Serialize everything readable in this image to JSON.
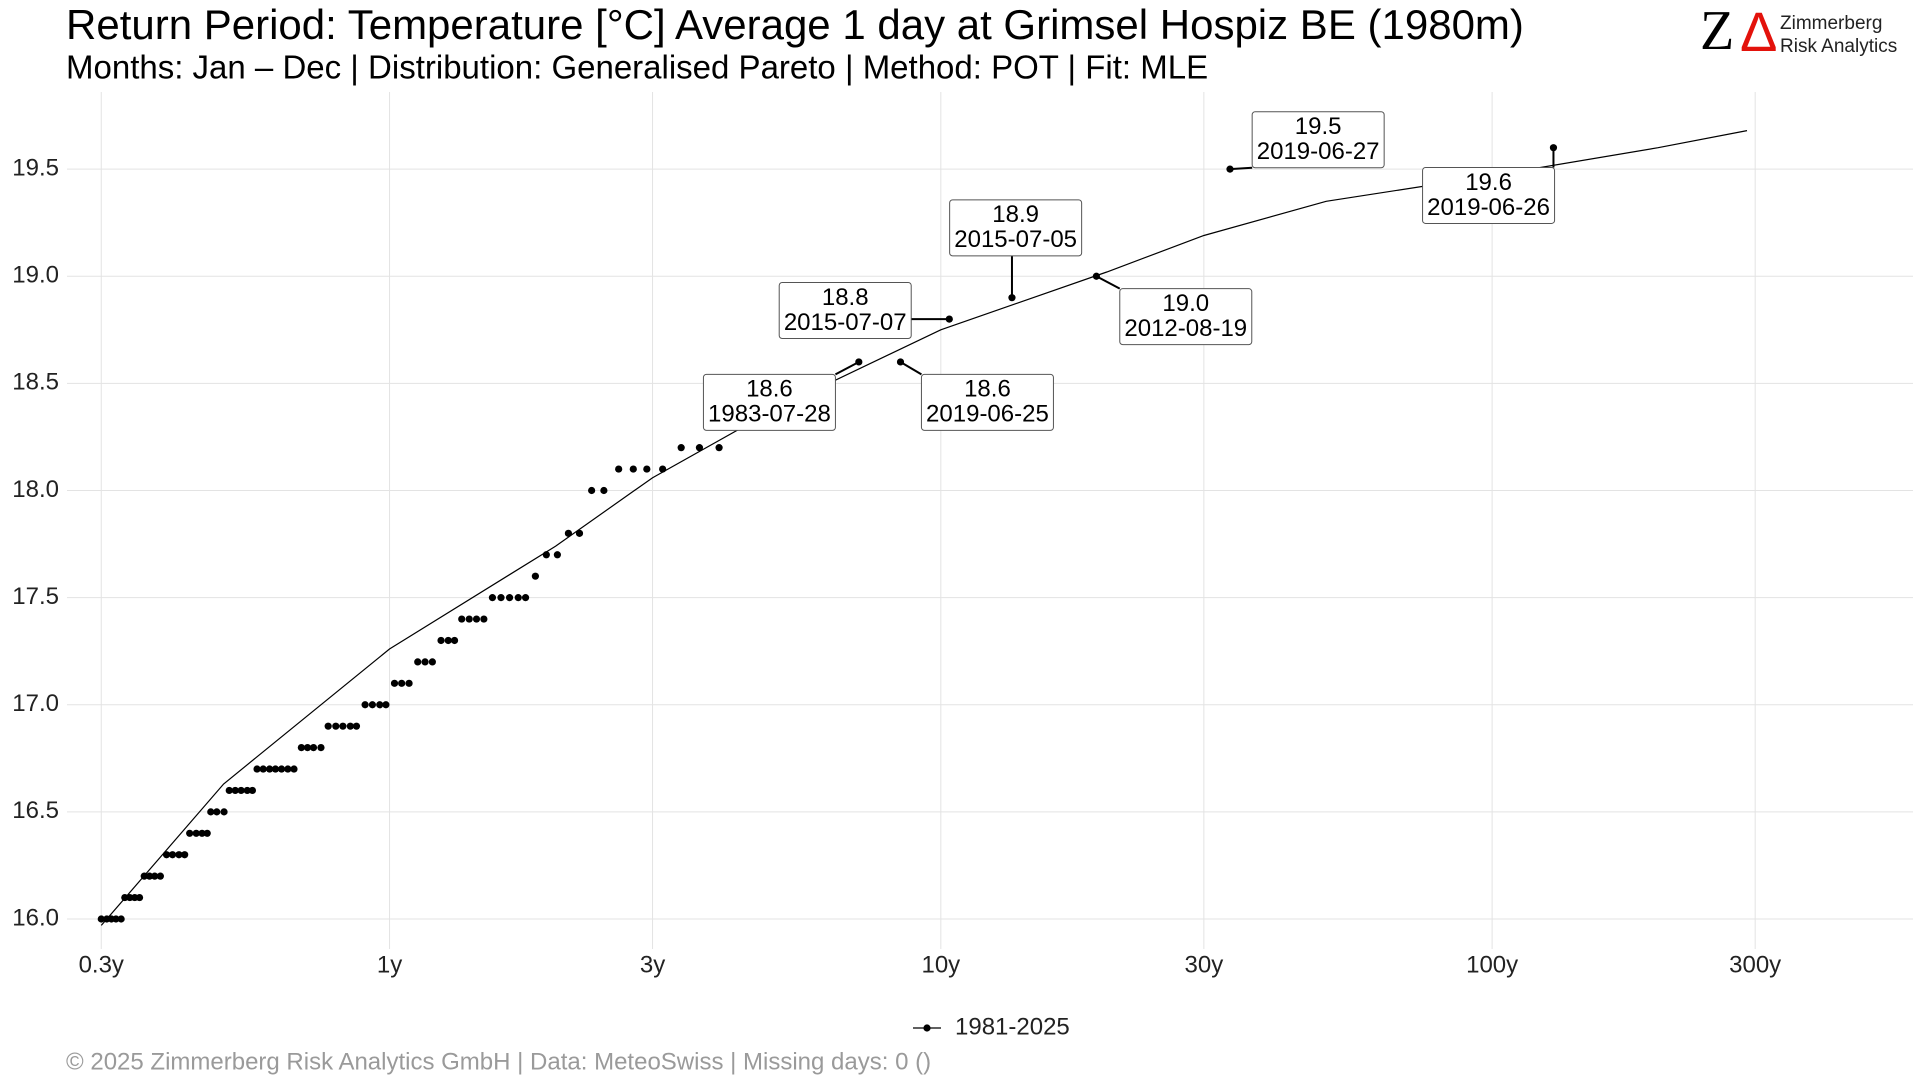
{
  "chart_data": {
    "type": "scatter",
    "title": "Return Period: Temperature [°C] Average 1 day at Grimsel Hospiz  BE (1980m)",
    "subtitle": "Months: Jan – Dec | Distribution: Generalised Pareto | Method: POT | Fit: MLE",
    "footer": "©  2025 Zimmerberg Risk Analytics GmbH | Data: MeteoSwiss | Missing days: 0 ()",
    "logo": {
      "mark_z": "Z",
      "mark_delta": "Δ",
      "line1": "Zimmerberg",
      "line2": "Risk Analytics"
    },
    "x_scale": "log",
    "xlim": [
      0.26,
      580
    ],
    "ylim": [
      15.86,
      19.86
    ],
    "xticks": [
      {
        "value": 0.3,
        "label": "0.3y"
      },
      {
        "value": 1,
        "label": "1y"
      },
      {
        "value": 3,
        "label": "3y"
      },
      {
        "value": 10,
        "label": "10y"
      },
      {
        "value": 30,
        "label": "30y"
      },
      {
        "value": 100,
        "label": "100y"
      },
      {
        "value": 300,
        "label": "300y"
      }
    ],
    "yticks": [
      {
        "value": 16,
        "label": "16.0"
      },
      16.5,
      {
        "value": 17,
        "label": "17.0"
      },
      17.5,
      {
        "value": 18,
        "label": "18.0"
      },
      18.5,
      {
        "value": 19,
        "label": "19.0"
      },
      19.5
    ],
    "grid": true,
    "legend": "bottom",
    "series": [
      {
        "name": "1981-2025",
        "color": "#000000",
        "x": [
          0.3,
          0.307,
          0.313,
          0.319,
          0.326,
          0.331,
          0.338,
          0.345,
          0.352,
          0.359,
          0.367,
          0.375,
          0.384,
          0.394,
          0.404,
          0.415,
          0.425,
          0.434,
          0.446,
          0.457,
          0.467,
          0.474,
          0.486,
          0.501,
          0.512,
          0.525,
          0.538,
          0.552,
          0.564,
          0.575,
          0.59,
          0.606,
          0.621,
          0.637,
          0.654,
          0.671,
          0.692,
          0.71,
          0.728,
          0.751,
          0.774,
          0.799,
          0.823,
          0.849,
          0.871,
          0.903,
          0.931,
          0.96,
          0.985,
          1.021,
          1.052,
          1.085,
          1.125,
          1.16,
          1.196,
          1.24,
          1.278,
          1.312,
          1.352,
          1.395,
          1.438,
          1.483,
          1.537,
          1.593,
          1.651,
          1.712,
          1.765,
          1.839,
          1.925,
          2.016,
          2.111,
          2.211,
          2.326,
          2.448,
          2.604,
          2.768,
          2.929,
          3.129,
          3.381,
          3.649,
          3.961,
          7.1,
          8.45,
          10.36,
          13.46,
          19.15,
          33.46,
          129.2
        ],
        "values": [
          16.0,
          16.0,
          16.0,
          16.0,
          16.0,
          16.1,
          16.1,
          16.1,
          16.1,
          16.2,
          16.2,
          16.2,
          16.2,
          16.3,
          16.3,
          16.3,
          16.3,
          16.4,
          16.4,
          16.4,
          16.4,
          16.5,
          16.5,
          16.5,
          16.6,
          16.6,
          16.6,
          16.6,
          16.6,
          16.7,
          16.7,
          16.7,
          16.7,
          16.7,
          16.7,
          16.7,
          16.8,
          16.8,
          16.8,
          16.8,
          16.9,
          16.9,
          16.9,
          16.9,
          16.9,
          17.0,
          17.0,
          17.0,
          17.0,
          17.1,
          17.1,
          17.1,
          17.2,
          17.2,
          17.2,
          17.3,
          17.3,
          17.3,
          17.4,
          17.4,
          17.4,
          17.4,
          17.5,
          17.5,
          17.5,
          17.5,
          17.5,
          17.6,
          17.7,
          17.7,
          17.8,
          17.8,
          18.0,
          18.0,
          18.1,
          18.1,
          18.1,
          18.1,
          18.2,
          18.2,
          18.2,
          18.6,
          18.6,
          18.8,
          18.9,
          19.0,
          19.5,
          19.6
        ]
      }
    ],
    "fit": {
      "color": "#000000",
      "x": [
        0.3,
        0.5,
        1,
        2,
        3,
        5,
        10,
        20,
        30,
        50,
        100,
        200,
        290
      ],
      "values": [
        15.97,
        16.63,
        17.26,
        17.74,
        18.06,
        18.38,
        18.75,
        19.02,
        19.19,
        19.35,
        19.47,
        19.6,
        19.68
      ]
    },
    "annotations": [
      {
        "label": "18.6",
        "date": "1983-07-28"
      },
      {
        "label": "18.6",
        "date": "2019-06-25"
      },
      {
        "label": "18.8",
        "date": "2015-07-07"
      },
      {
        "label": "18.9",
        "date": "2015-07-05"
      },
      {
        "label": "19.0",
        "date": "2012-08-19"
      },
      {
        "label": "19.5",
        "date": "2019-06-27"
      },
      {
        "label": "19.6",
        "date": "2019-06-26"
      }
    ]
  }
}
